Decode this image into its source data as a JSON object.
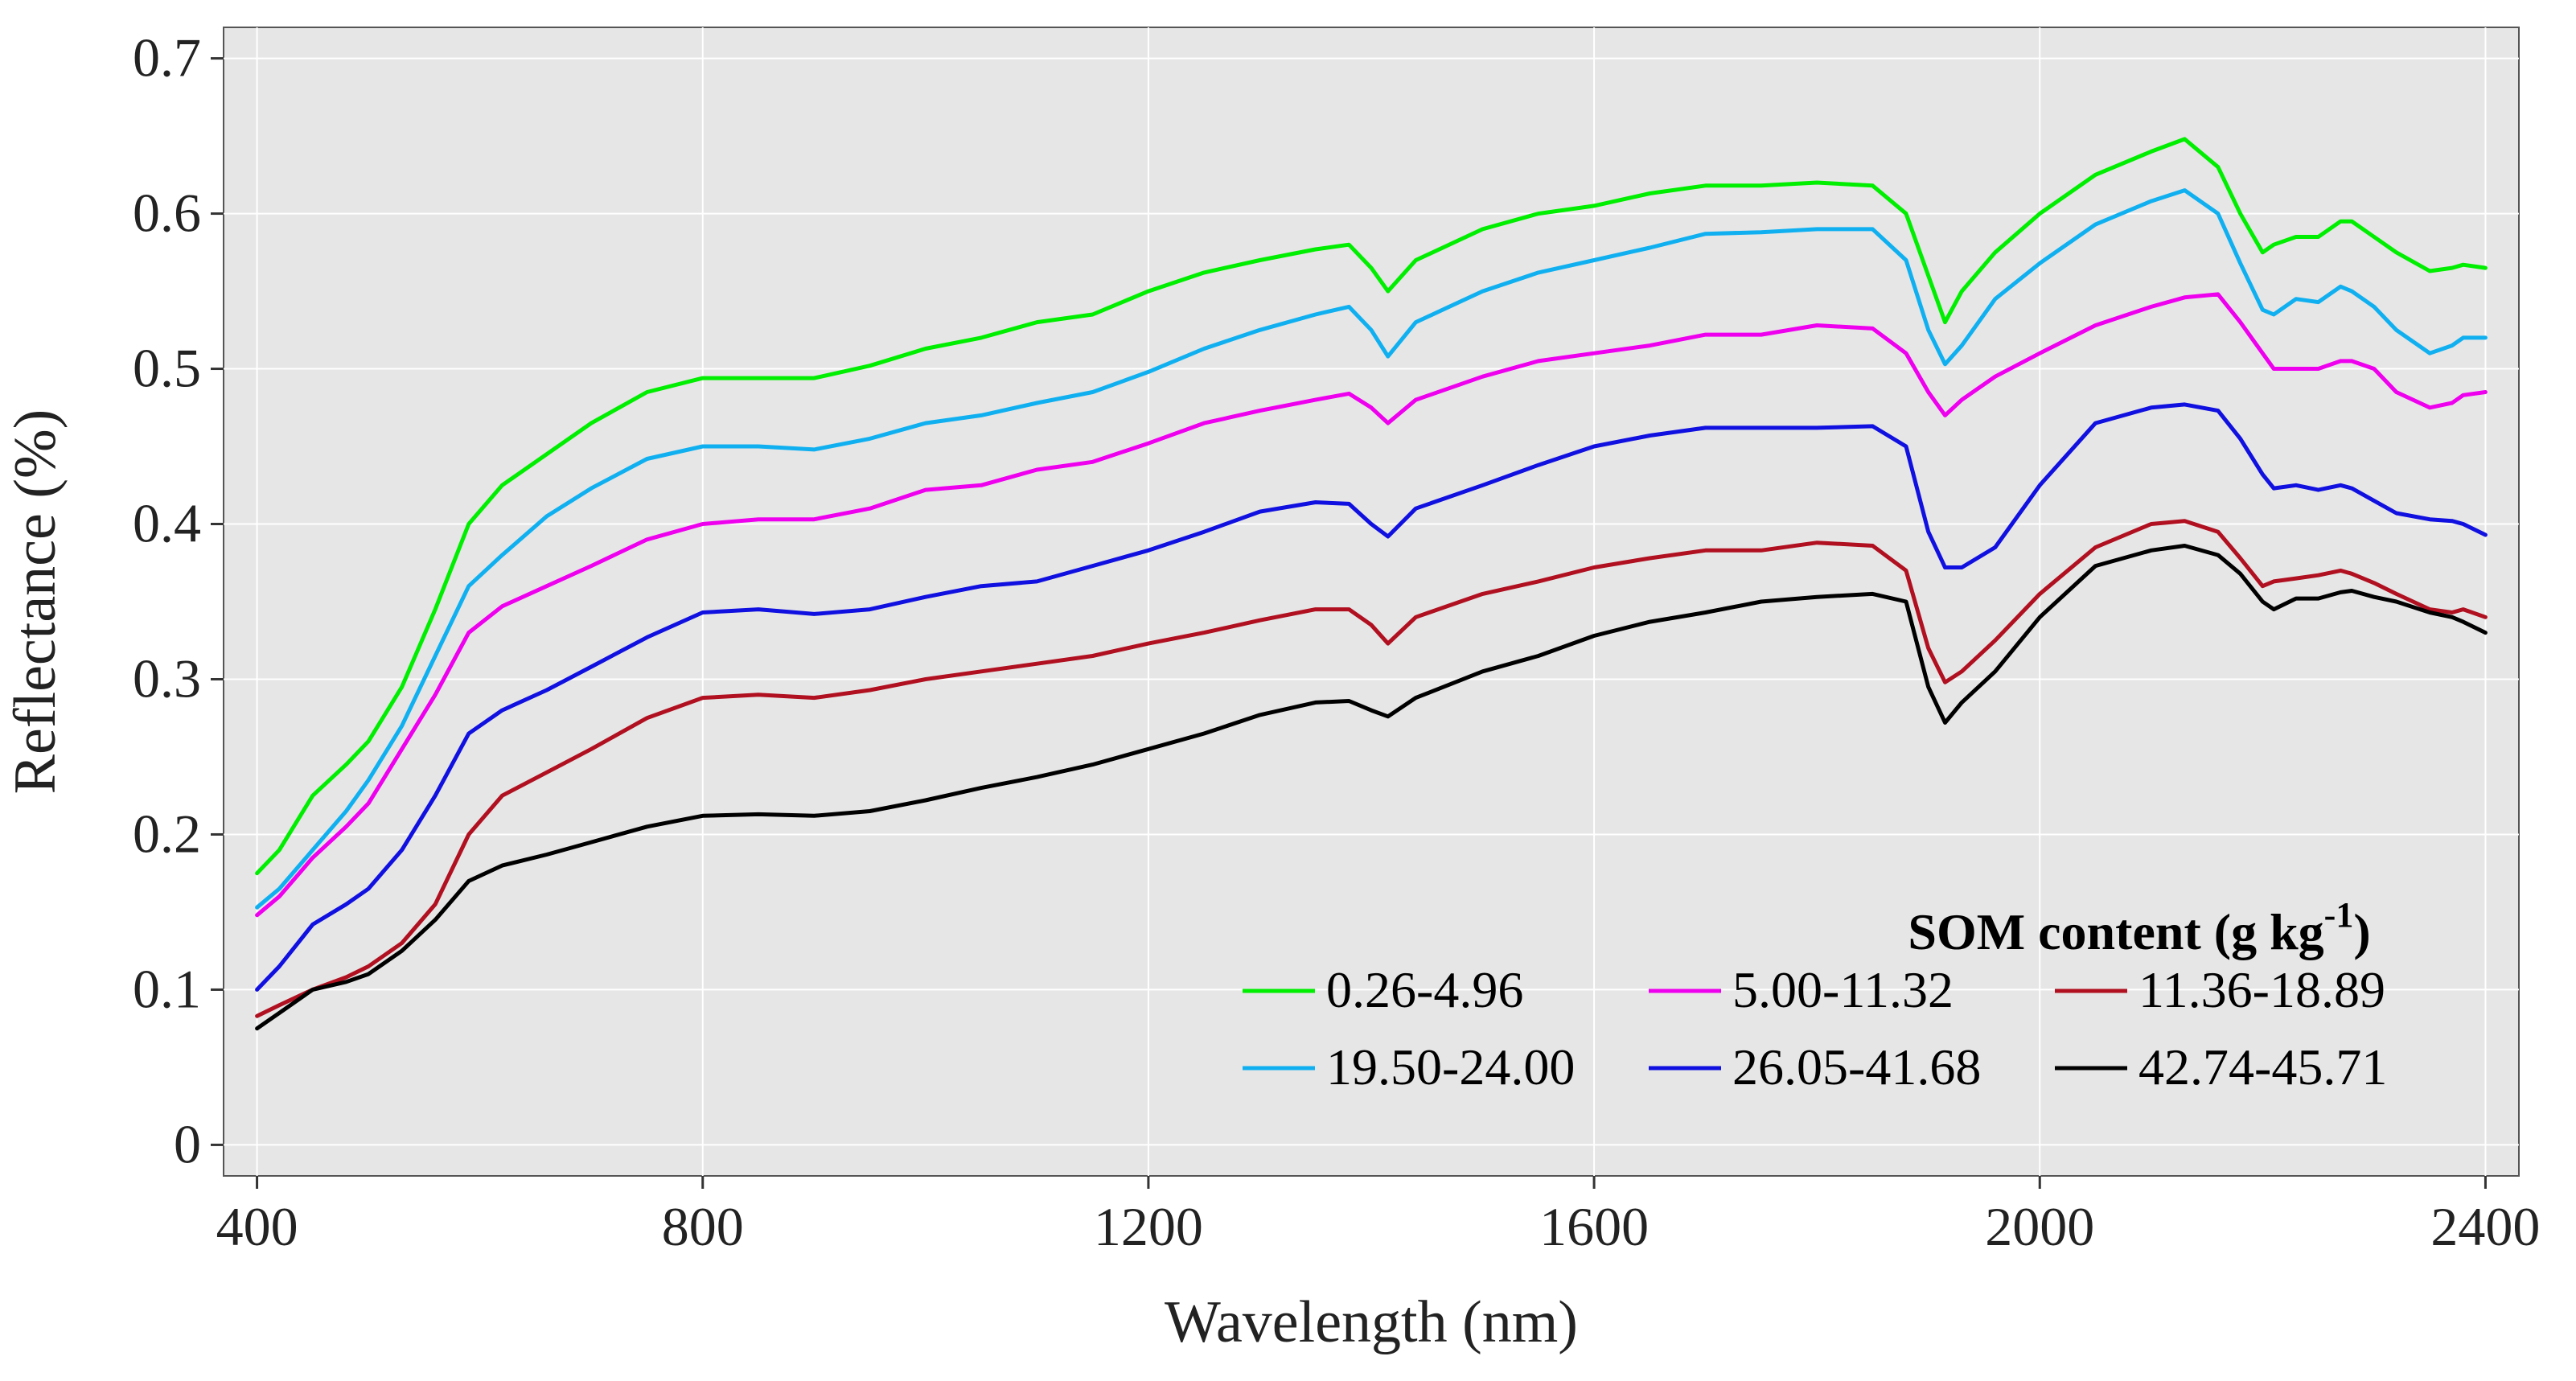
{
  "chart_data": {
    "type": "line",
    "title": "",
    "xlabel": "Wavelength (nm)",
    "ylabel": "Reflectance (%)",
    "xlim": [
      370,
      2430
    ],
    "ylim": [
      -0.02,
      0.72
    ],
    "xticks": [
      400,
      800,
      1200,
      1600,
      2000,
      2400
    ],
    "yticks": [
      0,
      0.1,
      0.2,
      0.3,
      0.4,
      0.5,
      0.6,
      0.7
    ],
    "ytick_labels": [
      "0",
      "0.1",
      "0.2",
      "0.3",
      "0.4",
      "0.5",
      "0.6",
      "0.7"
    ],
    "xtick_labels": [
      "400",
      "800",
      "1200",
      "1600",
      "2000",
      "2400"
    ],
    "grid": true,
    "legend": {
      "title_main": "SOM content (g kg",
      "title_sup": "-1",
      "title_close": ")",
      "position": "bottom-right",
      "columns": 3
    },
    "x": [
      400,
      420,
      450,
      480,
      500,
      530,
      560,
      590,
      620,
      660,
      700,
      750,
      800,
      850,
      900,
      950,
      1000,
      1050,
      1100,
      1150,
      1200,
      1250,
      1300,
      1350,
      1380,
      1400,
      1415,
      1440,
      1500,
      1550,
      1600,
      1650,
      1700,
      1750,
      1800,
      1850,
      1880,
      1900,
      1915,
      1930,
      1960,
      2000,
      2050,
      2100,
      2130,
      2160,
      2180,
      2200,
      2210,
      2230,
      2250,
      2270,
      2280,
      2300,
      2320,
      2350,
      2370,
      2380,
      2400
    ],
    "series": [
      {
        "name": "0.26-4.96",
        "color": "#00ee00",
        "values": [
          0.175,
          0.19,
          0.225,
          0.245,
          0.26,
          0.295,
          0.345,
          0.4,
          0.425,
          0.445,
          0.465,
          0.485,
          0.494,
          0.494,
          0.494,
          0.502,
          0.513,
          0.52,
          0.53,
          0.535,
          0.55,
          0.562,
          0.57,
          0.577,
          0.58,
          0.565,
          0.55,
          0.57,
          0.59,
          0.6,
          0.605,
          0.613,
          0.618,
          0.618,
          0.62,
          0.618,
          0.6,
          0.56,
          0.53,
          0.55,
          0.575,
          0.6,
          0.625,
          0.64,
          0.648,
          0.63,
          0.6,
          0.575,
          0.58,
          0.585,
          0.585,
          0.595,
          0.595,
          0.585,
          0.575,
          0.563,
          0.565,
          0.567,
          0.565
        ]
      },
      {
        "name": "5.00-11.32",
        "color": "#ee00ee",
        "values": [
          0.148,
          0.16,
          0.185,
          0.205,
          0.22,
          0.255,
          0.29,
          0.33,
          0.347,
          0.36,
          0.373,
          0.39,
          0.4,
          0.403,
          0.403,
          0.41,
          0.422,
          0.425,
          0.435,
          0.44,
          0.452,
          0.465,
          0.473,
          0.48,
          0.484,
          0.475,
          0.465,
          0.48,
          0.495,
          0.505,
          0.51,
          0.515,
          0.522,
          0.522,
          0.528,
          0.526,
          0.51,
          0.485,
          0.47,
          0.48,
          0.495,
          0.51,
          0.528,
          0.54,
          0.546,
          0.548,
          0.53,
          0.51,
          0.5,
          0.5,
          0.5,
          0.505,
          0.505,
          0.5,
          0.485,
          0.475,
          0.478,
          0.483,
          0.485
        ]
      },
      {
        "name": "11.36-18.89",
        "color": "#b01020",
        "values": [
          0.083,
          0.09,
          0.1,
          0.108,
          0.115,
          0.13,
          0.155,
          0.2,
          0.225,
          0.24,
          0.255,
          0.275,
          0.288,
          0.29,
          0.288,
          0.293,
          0.3,
          0.305,
          0.31,
          0.315,
          0.323,
          0.33,
          0.338,
          0.345,
          0.345,
          0.335,
          0.323,
          0.34,
          0.355,
          0.363,
          0.372,
          0.378,
          0.383,
          0.383,
          0.388,
          0.386,
          0.37,
          0.32,
          0.298,
          0.305,
          0.325,
          0.355,
          0.385,
          0.4,
          0.402,
          0.395,
          0.378,
          0.36,
          0.363,
          0.365,
          0.367,
          0.37,
          0.368,
          0.362,
          0.355,
          0.345,
          0.343,
          0.345,
          0.34
        ]
      },
      {
        "name": "19.50-24.00",
        "color": "#10b0f0",
        "values": [
          0.153,
          0.165,
          0.19,
          0.215,
          0.235,
          0.27,
          0.315,
          0.36,
          0.38,
          0.405,
          0.423,
          0.442,
          0.45,
          0.45,
          0.448,
          0.455,
          0.465,
          0.47,
          0.478,
          0.485,
          0.498,
          0.513,
          0.525,
          0.535,
          0.54,
          0.525,
          0.508,
          0.53,
          0.55,
          0.562,
          0.57,
          0.578,
          0.587,
          0.588,
          0.59,
          0.59,
          0.57,
          0.525,
          0.503,
          0.515,
          0.545,
          0.568,
          0.593,
          0.608,
          0.615,
          0.6,
          0.568,
          0.538,
          0.535,
          0.545,
          0.543,
          0.553,
          0.55,
          0.54,
          0.525,
          0.51,
          0.515,
          0.52,
          0.52
        ]
      },
      {
        "name": "26.05-41.68",
        "color": "#1010e0",
        "values": [
          0.1,
          0.115,
          0.142,
          0.155,
          0.165,
          0.19,
          0.225,
          0.265,
          0.28,
          0.293,
          0.308,
          0.327,
          0.343,
          0.345,
          0.342,
          0.345,
          0.353,
          0.36,
          0.363,
          0.373,
          0.383,
          0.395,
          0.408,
          0.414,
          0.413,
          0.4,
          0.392,
          0.41,
          0.425,
          0.438,
          0.45,
          0.457,
          0.462,
          0.462,
          0.462,
          0.463,
          0.45,
          0.395,
          0.372,
          0.372,
          0.385,
          0.425,
          0.465,
          0.475,
          0.477,
          0.473,
          0.455,
          0.432,
          0.423,
          0.425,
          0.422,
          0.425,
          0.423,
          0.415,
          0.407,
          0.403,
          0.402,
          0.4,
          0.393
        ]
      },
      {
        "name": "42.74-45.71",
        "color": "#000000",
        "values": [
          0.075,
          0.085,
          0.1,
          0.105,
          0.11,
          0.125,
          0.145,
          0.17,
          0.18,
          0.187,
          0.195,
          0.205,
          0.212,
          0.213,
          0.212,
          0.215,
          0.222,
          0.23,
          0.237,
          0.245,
          0.255,
          0.265,
          0.277,
          0.285,
          0.286,
          0.28,
          0.276,
          0.288,
          0.305,
          0.315,
          0.328,
          0.337,
          0.343,
          0.35,
          0.353,
          0.355,
          0.35,
          0.295,
          0.272,
          0.285,
          0.305,
          0.34,
          0.373,
          0.383,
          0.386,
          0.38,
          0.368,
          0.35,
          0.345,
          0.352,
          0.352,
          0.356,
          0.357,
          0.353,
          0.35,
          0.343,
          0.34,
          0.337,
          0.33
        ]
      }
    ]
  }
}
